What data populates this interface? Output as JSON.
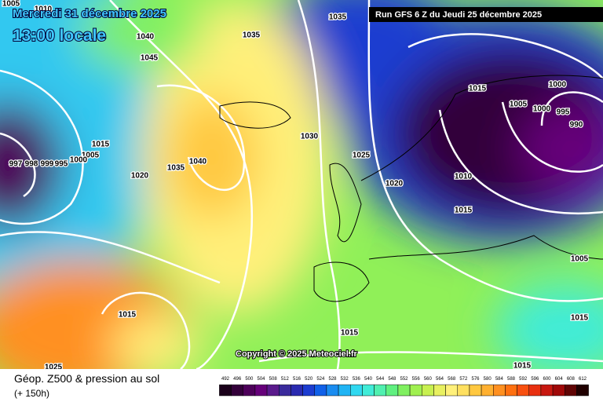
{
  "header": {
    "date": "Mercredi 31 décembre 2025",
    "time": "13:00 locale",
    "run": "Run GFS 6 Z du Jeudi 25 décembre 2025"
  },
  "copyright": "Copyright © 2025 Meteociel.fr",
  "footer": {
    "title": "Géop. Z500 & pression au sol",
    "lead": "(+ 150h)"
  },
  "isobar_labels": [
    1005,
    1010,
    1040,
    1045,
    1035,
    1035,
    1030,
    1025,
    1020,
    1015,
    1010,
    1015,
    1005,
    1000,
    1000,
    995,
    990,
    1005,
    1015,
    1015,
    1015,
    1015,
    1025,
    1035,
    1040,
    1020,
    1015,
    1005,
    1000,
    995,
    999,
    998,
    997
  ],
  "legend": {
    "ticks": [
      492,
      496,
      500,
      504,
      508,
      512,
      516,
      520,
      524,
      528,
      532,
      536,
      540,
      544,
      548,
      552,
      556,
      560,
      564,
      568,
      572,
      576,
      580,
      584,
      588,
      592,
      596,
      600,
      604,
      608,
      612
    ],
    "colors": [
      "#1a001a",
      "#33003a",
      "#4d005a",
      "#66007a",
      "#5a1a8c",
      "#3a2a9c",
      "#2a2ab0",
      "#1c3cd0",
      "#1060e8",
      "#1a8cf0",
      "#20b4f4",
      "#30d8f0",
      "#40ecd8",
      "#50f0b0",
      "#60f080",
      "#80f060",
      "#a0f050",
      "#c8f050",
      "#e8f060",
      "#fff07a",
      "#ffe060",
      "#ffc840",
      "#ffb030",
      "#ff9020",
      "#ff7010",
      "#f85010",
      "#e83010",
      "#c81810",
      "#a00808",
      "#600404",
      "#200000"
    ]
  }
}
